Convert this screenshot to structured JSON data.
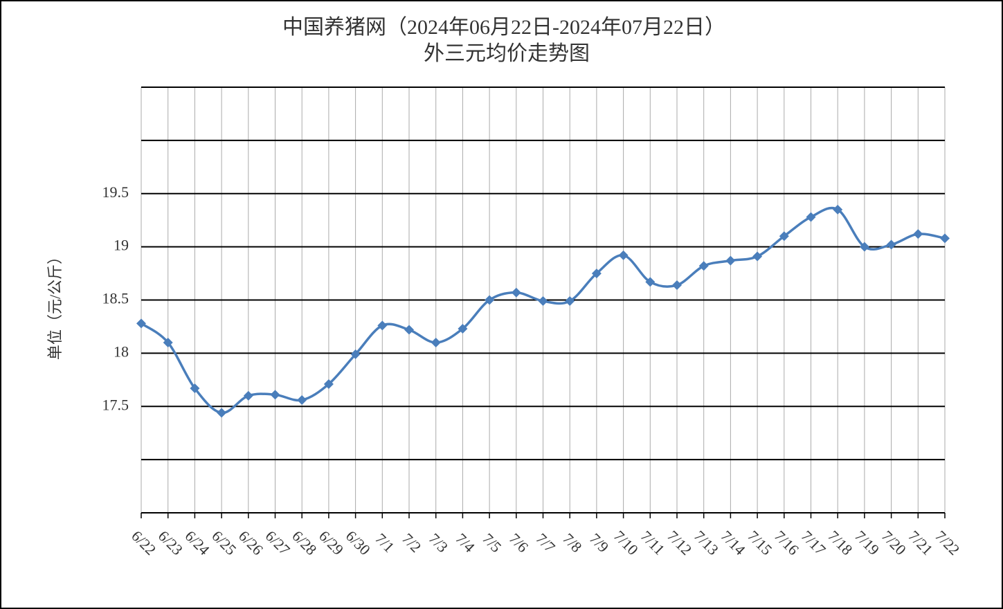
{
  "chart_data": {
    "type": "line",
    "title": "中国养猪网（2024年06月22日-2024年07月22日）",
    "subtitle": "外三元均价走势图",
    "y_label": "单位（元/公斤）",
    "categories": [
      "6/22",
      "6/23",
      "6/24",
      "6/25",
      "6/26",
      "6/27",
      "6/28",
      "6/29",
      "6/30",
      "7/1",
      "7/2",
      "7/3",
      "7/4",
      "7/5",
      "7/6",
      "7/7",
      "7/8",
      "7/9",
      "7/10",
      "7/11",
      "7/12",
      "7/13",
      "7/14",
      "7/15",
      "7/16",
      "7/17",
      "7/18",
      "7/19",
      "7/20",
      "7/21",
      "7/22"
    ],
    "values": [
      18.28,
      18.1,
      17.67,
      17.44,
      17.6,
      17.61,
      17.56,
      17.71,
      17.99,
      18.26,
      18.22,
      18.1,
      18.23,
      18.5,
      18.57,
      18.49,
      18.49,
      18.75,
      18.92,
      18.67,
      18.64,
      18.82,
      18.87,
      18.91,
      19.1,
      19.28,
      19.35,
      19.0,
      19.02,
      19.12,
      19.08
    ],
    "color": "#4a7ebb",
    "ylim": [
      16.5,
      20.5
    ],
    "yticks": [
      {
        "value": 16.5,
        "label": null
      },
      {
        "value": 17,
        "label": null
      },
      17.5,
      18,
      18.5,
      19,
      19.5,
      {
        "value": 20,
        "label": null
      },
      {
        "value": 20.5,
        "label": null
      }
    ],
    "grid": true
  }
}
